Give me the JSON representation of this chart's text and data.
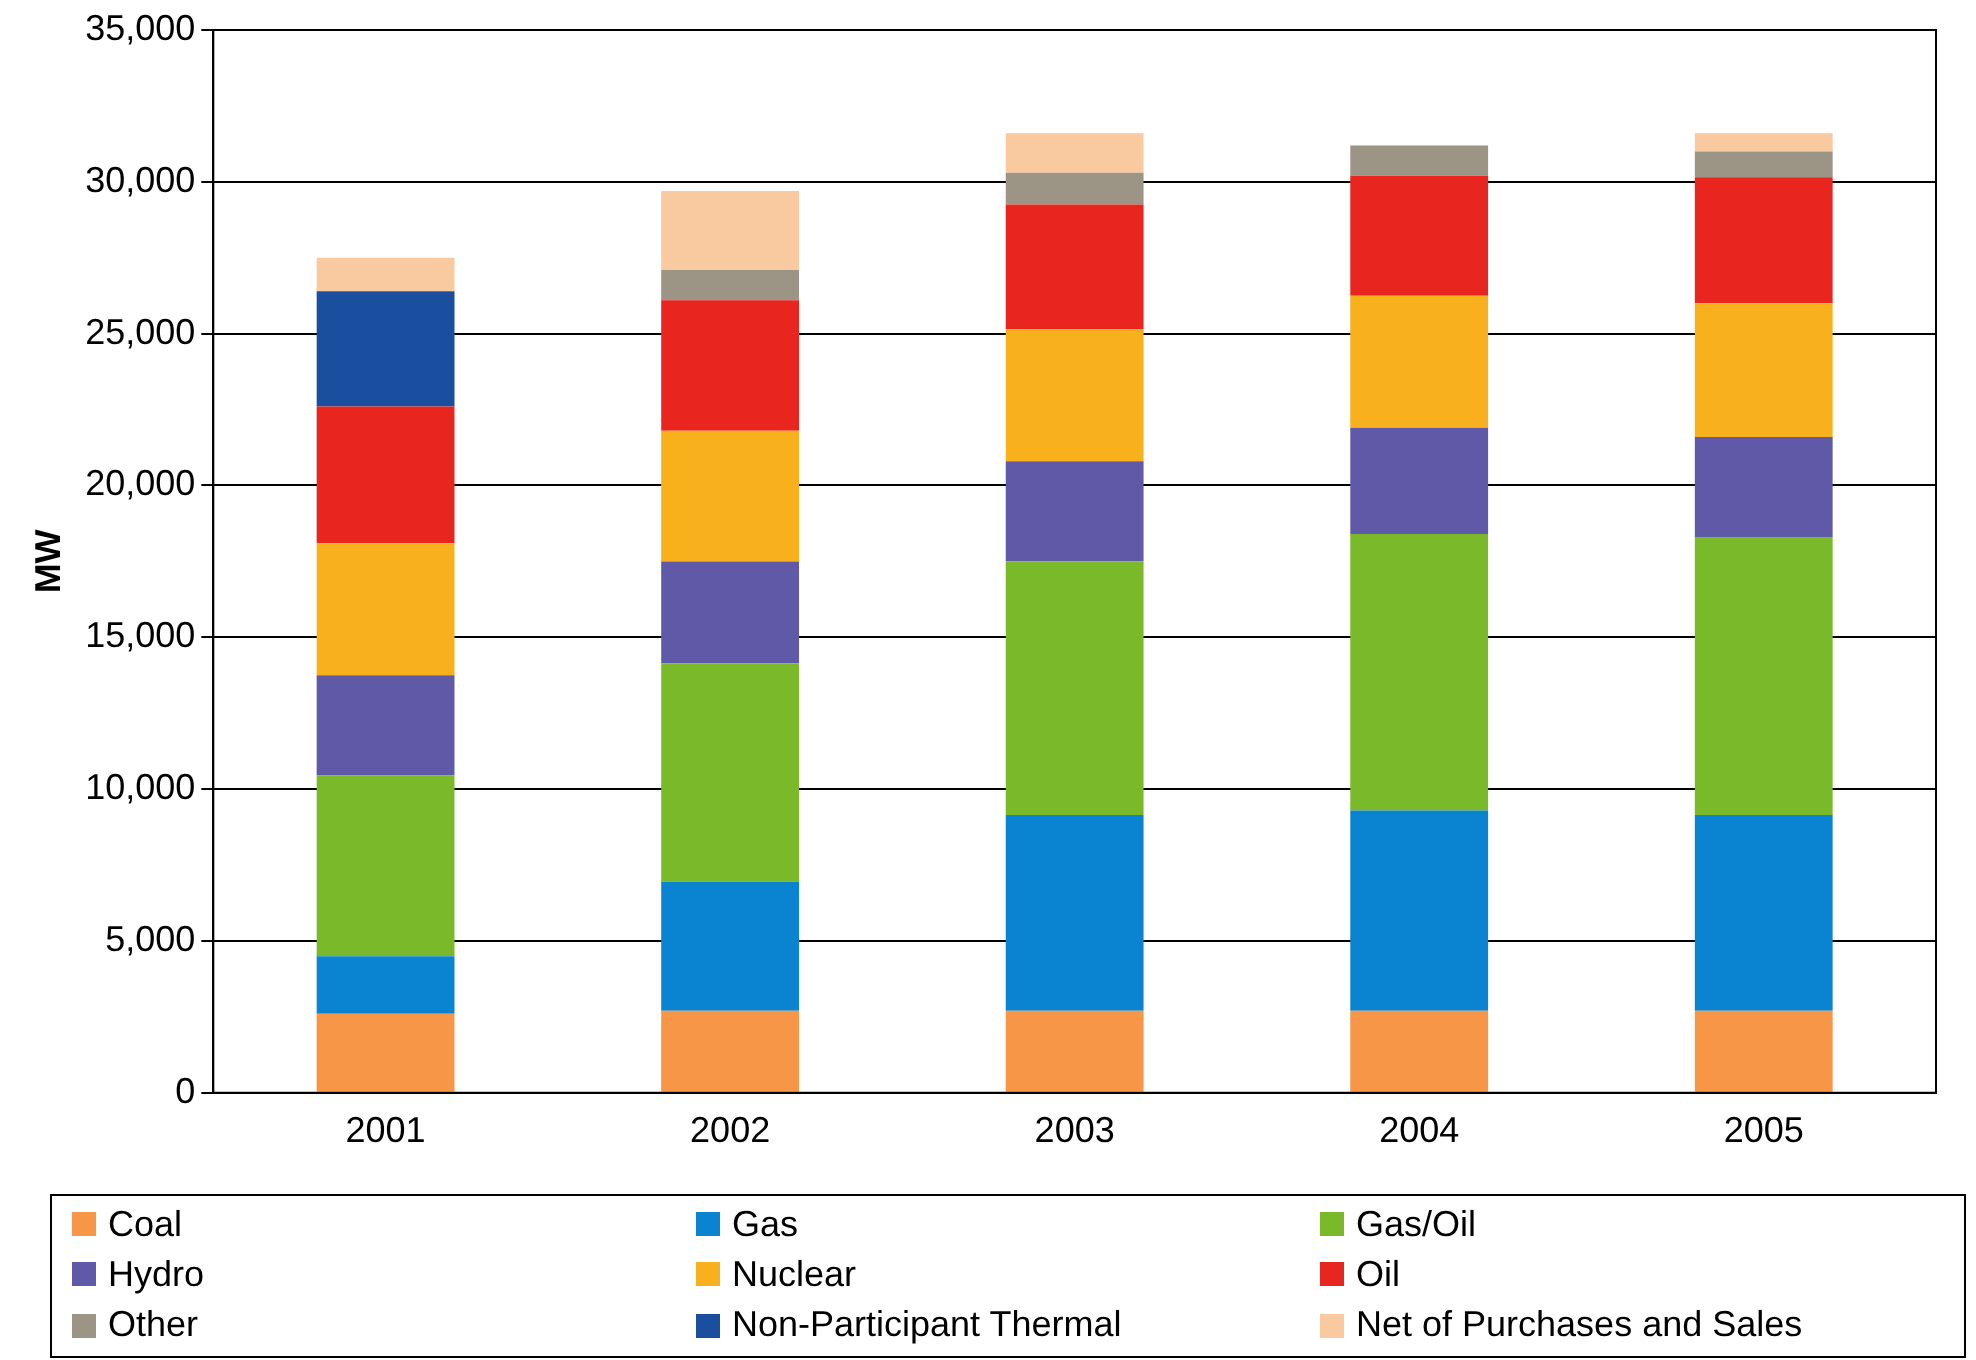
{
  "chart_data": {
    "type": "bar",
    "stacked": true,
    "ylabel": "MW",
    "categories": [
      "2001",
      "2002",
      "2003",
      "2004",
      "2005"
    ],
    "ylim": [
      0,
      35000
    ],
    "yticks": [
      {
        "value": 0,
        "label": "0"
      },
      {
        "value": 5000,
        "label": "5,000"
      },
      {
        "value": 10000,
        "label": "10,000"
      },
      {
        "value": 15000,
        "label": "15,000"
      },
      {
        "value": 20000,
        "label": "20,000"
      },
      {
        "value": 25000,
        "label": "25,000"
      },
      {
        "value": 30000,
        "label": "30,000"
      },
      {
        "value": 35000,
        "label": "35,000"
      }
    ],
    "grid": "y",
    "legend": "bottom",
    "series": [
      {
        "name": "Coal",
        "color": "#f79646",
        "values": [
          2600,
          2700,
          2700,
          2700,
          2700
        ]
      },
      {
        "name": "Gas",
        "color": "#0a84d0",
        "values": [
          1900,
          4250,
          6450,
          6600,
          6450
        ]
      },
      {
        "name": "Gas/Oil",
        "color": "#7aba2a",
        "values": [
          5950,
          7200,
          8350,
          9100,
          9150
        ]
      },
      {
        "name": "Hydro",
        "color": "#6059a7",
        "values": [
          3300,
          3350,
          3300,
          3500,
          3300
        ]
      },
      {
        "name": "Nuclear",
        "color": "#f8b01c",
        "values": [
          4350,
          4300,
          4350,
          4350,
          4400
        ]
      },
      {
        "name": "Oil",
        "color": "#e8261f",
        "values": [
          4500,
          4300,
          4100,
          3950,
          4150
        ]
      },
      {
        "name": "Other",
        "color": "#9c9484",
        "values": [
          0,
          1000,
          1050,
          1000,
          850
        ]
      },
      {
        "name": "Non-Participant Thermal",
        "color": "#1a4fa0",
        "values": [
          3800,
          0,
          0,
          0,
          0
        ]
      },
      {
        "name": "Net of Purchases and Sales",
        "color": "#f9c9a0",
        "values": [
          1100,
          2600,
          1300,
          0,
          600
        ]
      }
    ]
  }
}
